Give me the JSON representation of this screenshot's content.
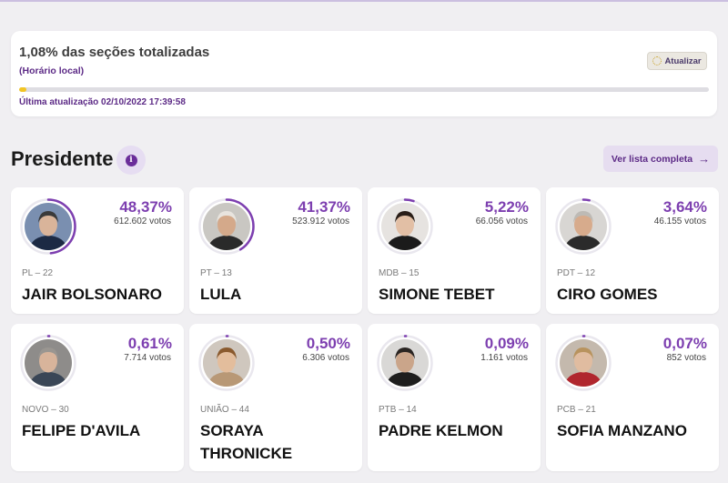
{
  "status": {
    "sections_text": "1,08% das seções totalizadas",
    "local_time_label": "(Horário local)",
    "refresh_label": "Atualizar",
    "progress": 0.0108,
    "last_update": "Última atualização 02/10/2022 17:39:58"
  },
  "section": {
    "title": "Presidente",
    "info_icon": "info-icon",
    "full_list_label": "Ver lista completa"
  },
  "colors": {
    "accent": "#7d3fb0",
    "progress": "#f2c524",
    "ring_track": "#e9e7ee"
  },
  "candidates": [
    {
      "pct": "48,37%",
      "votes": "612.602 votos",
      "party": "PL – 22",
      "name": "JAIR BOLSONARO",
      "share": 0.4837,
      "bg": "#7a8fb0",
      "skin": "#d9b49a",
      "hair": "#3a3a3a",
      "suit": "#1c2a44"
    },
    {
      "pct": "41,37%",
      "votes": "523.912 votos",
      "party": "PT – 13",
      "name": "LULA",
      "share": 0.4137,
      "bg": "#c9c7c2",
      "skin": "#d4a98a",
      "hair": "#e8e4de",
      "suit": "#2a2a2a"
    },
    {
      "pct": "5,22%",
      "votes": "66.056 votos",
      "party": "MDB – 15",
      "name": "SIMONE TEBET",
      "share": 0.0522,
      "bg": "#e6e3e0",
      "skin": "#e2bfa5",
      "hair": "#2a1e18",
      "suit": "#1b1b1b"
    },
    {
      "pct": "3,64%",
      "votes": "46.155 votos",
      "party": "PDT – 12",
      "name": "CIRO GOMES",
      "share": 0.0364,
      "bg": "#d8d6d3",
      "skin": "#d7ab8c",
      "hair": "#bdbab5",
      "suit": "#2b2b2b"
    },
    {
      "pct": "0,61%",
      "votes": "7.714 votos",
      "party": "NOVO – 30",
      "name": "FELIPE D'AVILA",
      "share": 0.0061,
      "bg": "#8e8c8a",
      "skin": "#d8b49b",
      "hair": "#9a9691",
      "suit": "#3a4656"
    },
    {
      "pct": "0,50%",
      "votes": "6.306 votos",
      "party": "UNIÃO – 44",
      "name": "SORAYA THRONICKE",
      "share": 0.005,
      "bg": "#cfc7be",
      "skin": "#e3bd9c",
      "hair": "#8a5a2e",
      "suit": "#b89876"
    },
    {
      "pct": "0,09%",
      "votes": "1.161 votos",
      "party": "PTB – 14",
      "name": "PADRE KELMON",
      "share": 0.0009,
      "bg": "#d9d8d6",
      "skin": "#caa58a",
      "hair": "#2a2522",
      "suit": "#1e1e1e"
    },
    {
      "pct": "0,07%",
      "votes": "852 votos",
      "party": "PCB – 21",
      "name": "SOFIA MANZANO",
      "share": 0.0007,
      "bg": "#c4b9ad",
      "skin": "#e0bca0",
      "hair": "#b8935e",
      "suit": "#b0262e"
    }
  ]
}
